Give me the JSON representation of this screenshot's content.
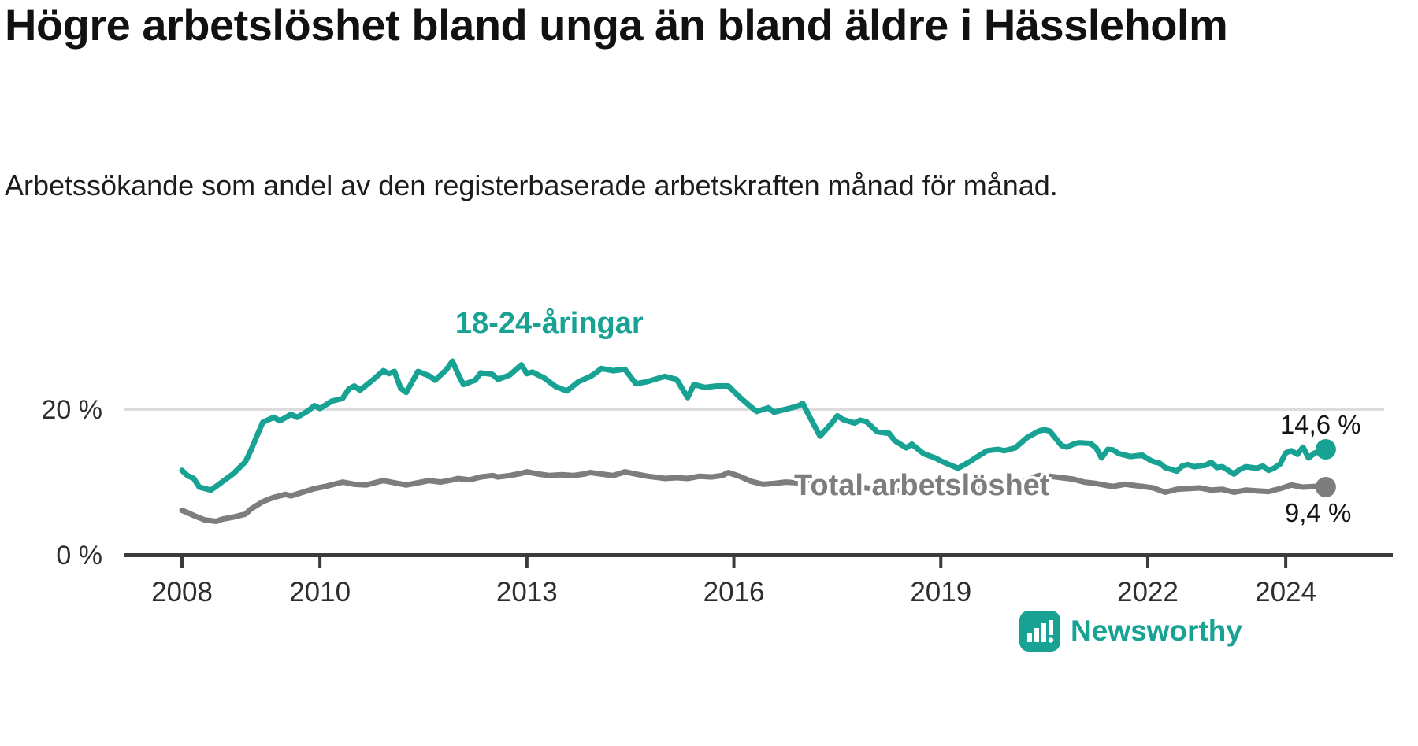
{
  "header": {
    "title": "Högre arbetslöshet bland unga än bland äldre i Hässleholm",
    "subtitle": "Arbetssökande som andel av den registerbaserade arbetskraften månad för månad."
  },
  "footer": {
    "brand": "Newsworthy"
  },
  "colors": {
    "teal": "#17a294",
    "gray": "#7d7d80",
    "axis": "#3b3b3b",
    "grid": "#dcdcdc",
    "text": "#141414"
  },
  "chart_data": {
    "type": "line",
    "title": "Högre arbetslöshet bland unga än bland äldre i Hässleholm",
    "subtitle": "Arbetssökande som andel av den registerbaserade arbetskraften månad för månad.",
    "unit": "%",
    "x_axis": {
      "ticks": [
        2008,
        2010,
        2013,
        2016,
        2019,
        2022,
        2024
      ],
      "range": [
        2007.2,
        2025.6
      ]
    },
    "y_axis": {
      "ticks": [
        {
          "value": 0,
          "label": "0 %"
        },
        {
          "value": 20,
          "label": "20 %"
        }
      ],
      "range": [
        0,
        30
      ],
      "gridlines": [
        20
      ]
    },
    "legend_position": "inline-annotations",
    "series": [
      {
        "name": "18-24-åringar",
        "color": "#17a294",
        "end_value": 14.6,
        "end_label": "14,6 %",
        "points": [
          [
            2008.0,
            11.7
          ],
          [
            2008.08,
            11.0
          ],
          [
            2008.17,
            10.6
          ],
          [
            2008.25,
            9.4
          ],
          [
            2008.42,
            9.0
          ],
          [
            2008.58,
            10.1
          ],
          [
            2008.75,
            11.3
          ],
          [
            2008.92,
            12.9
          ],
          [
            2009.0,
            14.5
          ],
          [
            2009.08,
            16.3
          ],
          [
            2009.17,
            18.3
          ],
          [
            2009.33,
            19.0
          ],
          [
            2009.42,
            18.5
          ],
          [
            2009.58,
            19.4
          ],
          [
            2009.67,
            19.0
          ],
          [
            2009.83,
            19.9
          ],
          [
            2009.92,
            20.6
          ],
          [
            2010.0,
            20.2
          ],
          [
            2010.17,
            21.2
          ],
          [
            2010.33,
            21.6
          ],
          [
            2010.42,
            22.9
          ],
          [
            2010.5,
            23.3
          ],
          [
            2010.58,
            22.7
          ],
          [
            2010.75,
            24.0
          ],
          [
            2010.92,
            25.4
          ],
          [
            2011.0,
            25.0
          ],
          [
            2011.08,
            25.3
          ],
          [
            2011.17,
            23.0
          ],
          [
            2011.25,
            22.4
          ],
          [
            2011.42,
            25.3
          ],
          [
            2011.58,
            24.7
          ],
          [
            2011.67,
            24.1
          ],
          [
            2011.83,
            25.5
          ],
          [
            2011.92,
            26.7
          ],
          [
            2012.0,
            25.0
          ],
          [
            2012.08,
            23.5
          ],
          [
            2012.25,
            24.1
          ],
          [
            2012.33,
            25.1
          ],
          [
            2012.5,
            24.9
          ],
          [
            2012.58,
            24.2
          ],
          [
            2012.75,
            24.8
          ],
          [
            2012.92,
            26.2
          ],
          [
            2013.0,
            25.0
          ],
          [
            2013.08,
            25.2
          ],
          [
            2013.25,
            24.4
          ],
          [
            2013.42,
            23.2
          ],
          [
            2013.58,
            22.6
          ],
          [
            2013.75,
            23.9
          ],
          [
            2013.92,
            24.6
          ],
          [
            2014.0,
            25.1
          ],
          [
            2014.08,
            25.7
          ],
          [
            2014.25,
            25.4
          ],
          [
            2014.42,
            25.6
          ],
          [
            2014.58,
            23.6
          ],
          [
            2014.75,
            23.9
          ],
          [
            2014.92,
            24.4
          ],
          [
            2015.0,
            24.6
          ],
          [
            2015.17,
            24.2
          ],
          [
            2015.33,
            21.7
          ],
          [
            2015.42,
            23.5
          ],
          [
            2015.58,
            23.1
          ],
          [
            2015.75,
            23.3
          ],
          [
            2015.92,
            23.3
          ],
          [
            2016.08,
            21.8
          ],
          [
            2016.25,
            20.4
          ],
          [
            2016.33,
            19.8
          ],
          [
            2016.5,
            20.3
          ],
          [
            2016.58,
            19.7
          ],
          [
            2016.75,
            20.1
          ],
          [
            2016.92,
            20.5
          ],
          [
            2017.0,
            20.9
          ],
          [
            2017.08,
            19.4
          ],
          [
            2017.25,
            16.4
          ],
          [
            2017.42,
            18.2
          ],
          [
            2017.5,
            19.2
          ],
          [
            2017.58,
            18.7
          ],
          [
            2017.75,
            18.2
          ],
          [
            2017.83,
            18.6
          ],
          [
            2017.92,
            18.4
          ],
          [
            2018.08,
            17.0
          ],
          [
            2018.25,
            16.8
          ],
          [
            2018.33,
            15.8
          ],
          [
            2018.5,
            14.8
          ],
          [
            2018.58,
            15.3
          ],
          [
            2018.75,
            14.0
          ],
          [
            2018.92,
            13.4
          ],
          [
            2019.0,
            13.0
          ],
          [
            2019.17,
            12.3
          ],
          [
            2019.25,
            12.0
          ],
          [
            2019.42,
            12.9
          ],
          [
            2019.5,
            13.4
          ],
          [
            2019.67,
            14.4
          ],
          [
            2019.83,
            14.6
          ],
          [
            2019.92,
            14.4
          ],
          [
            2020.08,
            14.8
          ],
          [
            2020.25,
            16.2
          ],
          [
            2020.42,
            17.1
          ],
          [
            2020.5,
            17.3
          ],
          [
            2020.58,
            17.1
          ],
          [
            2020.75,
            15.1
          ],
          [
            2020.83,
            14.9
          ],
          [
            2020.92,
            15.3
          ],
          [
            2021.0,
            15.5
          ],
          [
            2021.17,
            15.4
          ],
          [
            2021.25,
            14.8
          ],
          [
            2021.33,
            13.4
          ],
          [
            2021.42,
            14.6
          ],
          [
            2021.5,
            14.5
          ],
          [
            2021.58,
            14.0
          ],
          [
            2021.75,
            13.6
          ],
          [
            2021.83,
            13.7
          ],
          [
            2021.92,
            13.8
          ],
          [
            2022.0,
            13.3
          ],
          [
            2022.08,
            12.9
          ],
          [
            2022.17,
            12.7
          ],
          [
            2022.25,
            12.1
          ],
          [
            2022.42,
            11.6
          ],
          [
            2022.5,
            12.3
          ],
          [
            2022.58,
            12.5
          ],
          [
            2022.67,
            12.2
          ],
          [
            2022.83,
            12.4
          ],
          [
            2022.92,
            12.8
          ],
          [
            2023.0,
            12.1
          ],
          [
            2023.08,
            12.2
          ],
          [
            2023.25,
            11.2
          ],
          [
            2023.33,
            11.8
          ],
          [
            2023.42,
            12.2
          ],
          [
            2023.58,
            12.0
          ],
          [
            2023.67,
            12.3
          ],
          [
            2023.75,
            11.7
          ],
          [
            2023.83,
            12.0
          ],
          [
            2023.92,
            12.6
          ],
          [
            2024.0,
            14.1
          ],
          [
            2024.08,
            14.4
          ],
          [
            2024.17,
            13.9
          ],
          [
            2024.25,
            14.9
          ],
          [
            2024.33,
            13.4
          ],
          [
            2024.42,
            14.1
          ],
          [
            2024.5,
            14.3
          ],
          [
            2024.58,
            14.6
          ]
        ]
      },
      {
        "name": "Total arbetslöshet",
        "color": "#7d7d80",
        "end_value": 9.4,
        "end_label": "9,4 %",
        "points": [
          [
            2008.0,
            6.2
          ],
          [
            2008.08,
            5.9
          ],
          [
            2008.17,
            5.5
          ],
          [
            2008.33,
            4.9
          ],
          [
            2008.5,
            4.7
          ],
          [
            2008.58,
            5.0
          ],
          [
            2008.75,
            5.3
          ],
          [
            2008.92,
            5.7
          ],
          [
            2009.0,
            6.4
          ],
          [
            2009.17,
            7.4
          ],
          [
            2009.33,
            8.0
          ],
          [
            2009.5,
            8.4
          ],
          [
            2009.58,
            8.2
          ],
          [
            2009.75,
            8.7
          ],
          [
            2009.92,
            9.2
          ],
          [
            2010.08,
            9.5
          ],
          [
            2010.25,
            9.9
          ],
          [
            2010.33,
            10.1
          ],
          [
            2010.5,
            9.8
          ],
          [
            2010.67,
            9.7
          ],
          [
            2010.83,
            10.1
          ],
          [
            2010.92,
            10.3
          ],
          [
            2011.08,
            10.0
          ],
          [
            2011.25,
            9.7
          ],
          [
            2011.42,
            10.0
          ],
          [
            2011.58,
            10.3
          ],
          [
            2011.75,
            10.1
          ],
          [
            2011.92,
            10.4
          ],
          [
            2012.0,
            10.6
          ],
          [
            2012.17,
            10.4
          ],
          [
            2012.33,
            10.8
          ],
          [
            2012.5,
            11.0
          ],
          [
            2012.58,
            10.8
          ],
          [
            2012.75,
            11.0
          ],
          [
            2012.92,
            11.3
          ],
          [
            2013.0,
            11.5
          ],
          [
            2013.17,
            11.2
          ],
          [
            2013.33,
            11.0
          ],
          [
            2013.5,
            11.1
          ],
          [
            2013.67,
            11.0
          ],
          [
            2013.83,
            11.2
          ],
          [
            2013.92,
            11.4
          ],
          [
            2014.08,
            11.2
          ],
          [
            2014.25,
            11.0
          ],
          [
            2014.42,
            11.5
          ],
          [
            2014.58,
            11.2
          ],
          [
            2014.75,
            10.9
          ],
          [
            2014.92,
            10.7
          ],
          [
            2015.0,
            10.6
          ],
          [
            2015.17,
            10.7
          ],
          [
            2015.33,
            10.6
          ],
          [
            2015.5,
            10.9
          ],
          [
            2015.67,
            10.8
          ],
          [
            2015.83,
            11.0
          ],
          [
            2015.92,
            11.4
          ],
          [
            2016.08,
            10.9
          ],
          [
            2016.25,
            10.2
          ],
          [
            2016.42,
            9.8
          ],
          [
            2016.58,
            9.9
          ],
          [
            2016.75,
            10.1
          ],
          [
            2016.92,
            10.0
          ],
          [
            2017.08,
            10.0
          ],
          [
            2017.25,
            9.8
          ],
          [
            2017.42,
            9.7
          ],
          [
            2017.58,
            9.5
          ],
          [
            2017.75,
            9.4
          ],
          [
            2017.92,
            9.3
          ],
          [
            2018.08,
            9.1
          ],
          [
            2018.25,
            9.0
          ],
          [
            2018.42,
            8.9
          ],
          [
            2018.58,
            8.8
          ],
          [
            2018.75,
            8.8
          ],
          [
            2018.92,
            8.7
          ],
          [
            2019.08,
            8.8
          ],
          [
            2019.25,
            8.9
          ],
          [
            2019.42,
            9.0
          ],
          [
            2019.58,
            9.2
          ],
          [
            2019.75,
            9.3
          ],
          [
            2019.92,
            9.5
          ],
          [
            2020.08,
            9.8
          ],
          [
            2020.25,
            10.4
          ],
          [
            2020.42,
            11.0
          ],
          [
            2020.58,
            10.9
          ],
          [
            2020.75,
            10.7
          ],
          [
            2020.92,
            10.5
          ],
          [
            2021.08,
            10.1
          ],
          [
            2021.25,
            9.9
          ],
          [
            2021.42,
            9.6
          ],
          [
            2021.5,
            9.5
          ],
          [
            2021.67,
            9.8
          ],
          [
            2021.83,
            9.6
          ],
          [
            2021.92,
            9.5
          ],
          [
            2022.08,
            9.3
          ],
          [
            2022.25,
            8.7
          ],
          [
            2022.42,
            9.1
          ],
          [
            2022.58,
            9.2
          ],
          [
            2022.75,
            9.3
          ],
          [
            2022.92,
            9.0
          ],
          [
            2023.08,
            9.1
          ],
          [
            2023.25,
            8.7
          ],
          [
            2023.42,
            9.0
          ],
          [
            2023.58,
            8.9
          ],
          [
            2023.75,
            8.8
          ],
          [
            2023.92,
            9.2
          ],
          [
            2024.08,
            9.7
          ],
          [
            2024.25,
            9.4
          ],
          [
            2024.42,
            9.5
          ],
          [
            2024.58,
            9.4
          ]
        ]
      }
    ]
  }
}
